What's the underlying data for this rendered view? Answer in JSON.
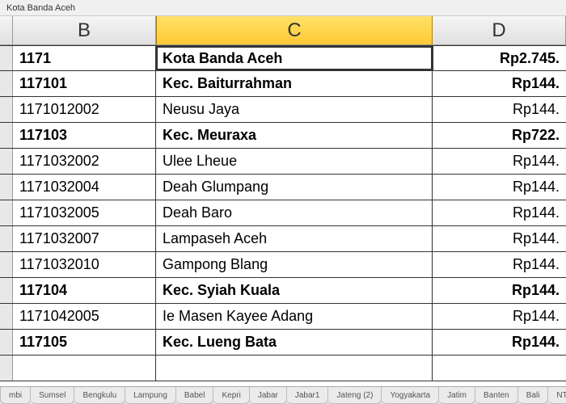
{
  "formulaBar": {
    "text": "Kota Banda Aceh"
  },
  "columns": {
    "b": "B",
    "c": "C",
    "d": "D"
  },
  "rows": [
    {
      "bold": true,
      "active": true,
      "b": "1171",
      "c": "Kota Banda Aceh",
      "d": "Rp2.745."
    },
    {
      "bold": true,
      "b": "117101",
      "c": "Kec. Baiturrahman",
      "d": "Rp144."
    },
    {
      "bold": false,
      "b": "1171012002",
      "c": "Neusu Jaya",
      "d": "Rp144."
    },
    {
      "bold": true,
      "b": "117103",
      "c": "Kec. Meuraxa",
      "d": "Rp722."
    },
    {
      "bold": false,
      "b": "1171032002",
      "c": "Ulee Lheue",
      "d": "Rp144."
    },
    {
      "bold": false,
      "b": "1171032004",
      "c": "Deah Glumpang",
      "d": "Rp144."
    },
    {
      "bold": false,
      "b": "1171032005",
      "c": "Deah Baro",
      "d": "Rp144."
    },
    {
      "bold": false,
      "b": "1171032007",
      "c": "Lampaseh Aceh",
      "d": "Rp144."
    },
    {
      "bold": false,
      "b": "1171032010",
      "c": "Gampong Blang",
      "d": "Rp144."
    },
    {
      "bold": true,
      "b": "117104",
      "c": "Kec. Syiah Kuala",
      "d": "Rp144."
    },
    {
      "bold": false,
      "b": "1171042005",
      "c": "Ie Masen Kayee Adang",
      "d": "Rp144."
    },
    {
      "bold": true,
      "b": "117105",
      "c": "Kec. Lueng Bata",
      "d": "Rp144."
    },
    {
      "bold": false,
      "b": "",
      "c": "",
      "d": ""
    }
  ],
  "tabs": [
    {
      "label": "mbi"
    },
    {
      "label": "Sumsel"
    },
    {
      "label": "Bengkulu"
    },
    {
      "label": "Lampung"
    },
    {
      "label": "Babel"
    },
    {
      "label": "Kepri"
    },
    {
      "label": "Jabar"
    },
    {
      "label": "Jabar1"
    },
    {
      "label": "Jateng (2)"
    },
    {
      "label": "Yogyakarta"
    },
    {
      "label": "Jatim"
    },
    {
      "label": "Banten"
    },
    {
      "label": "Bali"
    },
    {
      "label": "NTB"
    }
  ]
}
